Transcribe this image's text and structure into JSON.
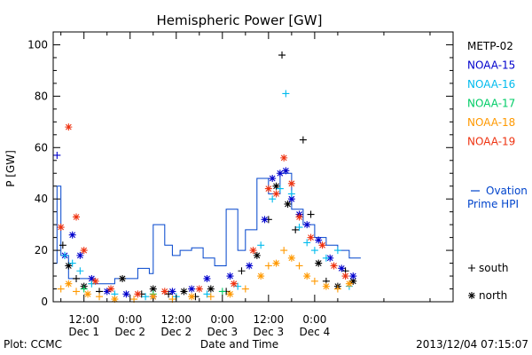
{
  "chart_data": {
    "type": "scatter",
    "title": "Hemispheric Power [GW]",
    "ylabel": "P [GW]",
    "xlabel": "Date and Time",
    "footer_left": "Plot: CCMC",
    "footer_right": "2013/12/04 07:15:07",
    "x_unit": "hours since 2013-11-30 00:00 UT",
    "xlim": [
      4,
      108
    ],
    "ylim": [
      0,
      105
    ],
    "grid": false,
    "legend_placement": "right",
    "yticks": [
      0,
      20,
      40,
      60,
      80,
      100
    ],
    "xticks": [
      {
        "x": 12,
        "top": "12:00",
        "bottom": "Dec 1"
      },
      {
        "x": 24,
        "top": "0:00",
        "bottom": "Dec 2"
      },
      {
        "x": 36,
        "top": "12:00",
        "bottom": "Dec 2"
      },
      {
        "x": 48,
        "top": "0:00",
        "bottom": "Dec 3"
      },
      {
        "x": 60,
        "top": "12:00",
        "bottom": "Dec 3"
      },
      {
        "x": 72,
        "top": "0:00",
        "bottom": "Dec 4"
      }
    ],
    "symbol_legend": [
      {
        "symbol": "+",
        "label": "south"
      },
      {
        "symbol": "*",
        "label": "north"
      }
    ],
    "series": [
      {
        "name": "METP-02",
        "color": "#000000",
        "points": [
          {
            "x": 6.5,
            "y": 22,
            "m": "+"
          },
          {
            "x": 8,
            "y": 14,
            "m": "*"
          },
          {
            "x": 10,
            "y": 9,
            "m": "+"
          },
          {
            "x": 12,
            "y": 6,
            "m": "*"
          },
          {
            "x": 16,
            "y": 4,
            "m": "+"
          },
          {
            "x": 22,
            "y": 9,
            "m": "*"
          },
          {
            "x": 27,
            "y": 3,
            "m": "+"
          },
          {
            "x": 30,
            "y": 5,
            "m": "*"
          },
          {
            "x": 34,
            "y": 3,
            "m": "+"
          },
          {
            "x": 38,
            "y": 4,
            "m": "*"
          },
          {
            "x": 41,
            "y": 2,
            "m": "+"
          },
          {
            "x": 45,
            "y": 5,
            "m": "*"
          },
          {
            "x": 49,
            "y": 4,
            "m": "+"
          },
          {
            "x": 53,
            "y": 12,
            "m": "+"
          },
          {
            "x": 57,
            "y": 18,
            "m": "*"
          },
          {
            "x": 60,
            "y": 32,
            "m": "+"
          },
          {
            "x": 62,
            "y": 45,
            "m": "*"
          },
          {
            "x": 63.5,
            "y": 96,
            "m": "+"
          },
          {
            "x": 65,
            "y": 38,
            "m": "*"
          },
          {
            "x": 67,
            "y": 28,
            "m": "+"
          },
          {
            "x": 69,
            "y": 63,
            "m": "+"
          },
          {
            "x": 71,
            "y": 34,
            "m": "+"
          },
          {
            "x": 73,
            "y": 15,
            "m": "*"
          },
          {
            "x": 75,
            "y": 8,
            "m": "+"
          },
          {
            "x": 78,
            "y": 6,
            "m": "*"
          },
          {
            "x": 80,
            "y": 12,
            "m": "+"
          },
          {
            "x": 82,
            "y": 8,
            "m": "*"
          }
        ]
      },
      {
        "name": "NOAA-15",
        "color": "#0000cc",
        "points": [
          {
            "x": 5,
            "y": 57,
            "m": "+"
          },
          {
            "x": 7,
            "y": 18,
            "m": "*"
          },
          {
            "x": 9,
            "y": 26,
            "m": "*"
          },
          {
            "x": 11,
            "y": 18,
            "m": "*"
          },
          {
            "x": 14,
            "y": 9,
            "m": "*"
          },
          {
            "x": 18,
            "y": 4,
            "m": "*"
          },
          {
            "x": 23,
            "y": 3,
            "m": "*"
          },
          {
            "x": 30,
            "y": 2,
            "m": "*"
          },
          {
            "x": 35,
            "y": 4,
            "m": "*"
          },
          {
            "x": 40,
            "y": 5,
            "m": "*"
          },
          {
            "x": 44,
            "y": 9,
            "m": "*"
          },
          {
            "x": 50,
            "y": 10,
            "m": "*"
          },
          {
            "x": 55,
            "y": 14,
            "m": "*"
          },
          {
            "x": 59,
            "y": 32,
            "m": "*"
          },
          {
            "x": 61,
            "y": 48,
            "m": "*"
          },
          {
            "x": 63,
            "y": 50,
            "m": "*"
          },
          {
            "x": 64.5,
            "y": 51,
            "m": "*"
          },
          {
            "x": 66,
            "y": 40,
            "m": "*"
          },
          {
            "x": 68,
            "y": 34,
            "m": "*"
          },
          {
            "x": 70,
            "y": 30,
            "m": "*"
          },
          {
            "x": 73,
            "y": 24,
            "m": "*"
          },
          {
            "x": 76,
            "y": 17,
            "m": "*"
          },
          {
            "x": 79,
            "y": 13,
            "m": "*"
          },
          {
            "x": 82,
            "y": 10,
            "m": "*"
          }
        ]
      },
      {
        "name": "NOAA-16",
        "color": "#00bbee",
        "points": [
          {
            "x": 7,
            "y": 18,
            "m": "+"
          },
          {
            "x": 9,
            "y": 15,
            "m": "+"
          },
          {
            "x": 11,
            "y": 12,
            "m": "+"
          },
          {
            "x": 14,
            "y": 7,
            "m": "+"
          },
          {
            "x": 20,
            "y": 3,
            "m": "+"
          },
          {
            "x": 28,
            "y": 2,
            "m": "+"
          },
          {
            "x": 36,
            "y": 2,
            "m": "+"
          },
          {
            "x": 44,
            "y": 3,
            "m": "+"
          },
          {
            "x": 52,
            "y": 6,
            "m": "+"
          },
          {
            "x": 58,
            "y": 22,
            "m": "+"
          },
          {
            "x": 61,
            "y": 40,
            "m": "+"
          },
          {
            "x": 63,
            "y": 44,
            "m": "+"
          },
          {
            "x": 64.5,
            "y": 81,
            "m": "+"
          },
          {
            "x": 66,
            "y": 42,
            "m": "+"
          },
          {
            "x": 68,
            "y": 29,
            "m": "+"
          },
          {
            "x": 70,
            "y": 23,
            "m": "+"
          },
          {
            "x": 72,
            "y": 20,
            "m": "+"
          },
          {
            "x": 75,
            "y": 17,
            "m": "+"
          },
          {
            "x": 78,
            "y": 20,
            "m": "+"
          },
          {
            "x": 81,
            "y": 6,
            "m": "+"
          }
        ]
      },
      {
        "name": "NOAA-17",
        "color": "#00cc66",
        "points": [
          {
            "x": 12,
            "y": 5,
            "m": "+"
          },
          {
            "x": 30,
            "y": 3,
            "m": "+"
          },
          {
            "x": 48,
            "y": 4,
            "m": "+"
          }
        ]
      },
      {
        "name": "NOAA-18",
        "color": "#ff9900",
        "points": [
          {
            "x": 6,
            "y": 5,
            "m": "+"
          },
          {
            "x": 8,
            "y": 7,
            "m": "*"
          },
          {
            "x": 10,
            "y": 4,
            "m": "+"
          },
          {
            "x": 13,
            "y": 3,
            "m": "*"
          },
          {
            "x": 16,
            "y": 2,
            "m": "+"
          },
          {
            "x": 20,
            "y": 1,
            "m": "*"
          },
          {
            "x": 25,
            "y": 1,
            "m": "+"
          },
          {
            "x": 30,
            "y": 2,
            "m": "*"
          },
          {
            "x": 35,
            "y": 1,
            "m": "+"
          },
          {
            "x": 40,
            "y": 2,
            "m": "*"
          },
          {
            "x": 45,
            "y": 2,
            "m": "+"
          },
          {
            "x": 50,
            "y": 3,
            "m": "*"
          },
          {
            "x": 54,
            "y": 5,
            "m": "+"
          },
          {
            "x": 58,
            "y": 10,
            "m": "*"
          },
          {
            "x": 60,
            "y": 14,
            "m": "+"
          },
          {
            "x": 62,
            "y": 15,
            "m": "*"
          },
          {
            "x": 64,
            "y": 20,
            "m": "+"
          },
          {
            "x": 66,
            "y": 17,
            "m": "*"
          },
          {
            "x": 68,
            "y": 14,
            "m": "+"
          },
          {
            "x": 70,
            "y": 10,
            "m": "*"
          },
          {
            "x": 72,
            "y": 8,
            "m": "+"
          },
          {
            "x": 75,
            "y": 6,
            "m": "*"
          },
          {
            "x": 78,
            "y": 5,
            "m": "+"
          },
          {
            "x": 81,
            "y": 7,
            "m": "*"
          }
        ]
      },
      {
        "name": "NOAA-19",
        "color": "#ee3311",
        "points": [
          {
            "x": 6,
            "y": 29,
            "m": "*"
          },
          {
            "x": 8,
            "y": 68,
            "m": "*"
          },
          {
            "x": 10,
            "y": 33,
            "m": "*"
          },
          {
            "x": 12,
            "y": 20,
            "m": "*"
          },
          {
            "x": 15,
            "y": 8,
            "m": "*"
          },
          {
            "x": 19,
            "y": 5,
            "m": "*"
          },
          {
            "x": 26,
            "y": 3,
            "m": "*"
          },
          {
            "x": 33,
            "y": 4,
            "m": "*"
          },
          {
            "x": 42,
            "y": 5,
            "m": "*"
          },
          {
            "x": 51,
            "y": 7,
            "m": "*"
          },
          {
            "x": 56,
            "y": 20,
            "m": "*"
          },
          {
            "x": 60,
            "y": 44,
            "m": "*"
          },
          {
            "x": 62,
            "y": 42,
            "m": "*"
          },
          {
            "x": 64,
            "y": 56,
            "m": "*"
          },
          {
            "x": 66,
            "y": 46,
            "m": "*"
          },
          {
            "x": 68,
            "y": 33,
            "m": "*"
          },
          {
            "x": 71,
            "y": 25,
            "m": "*"
          },
          {
            "x": 74,
            "y": 22,
            "m": "*"
          },
          {
            "x": 77,
            "y": 14,
            "m": "*"
          },
          {
            "x": 80,
            "y": 10,
            "m": "*"
          }
        ]
      }
    ],
    "hpi_series": {
      "name": "Ovation Prime HPI",
      "legend_label": "Ovation",
      "legend_label_2": "Prime HPI",
      "color": "#0044cc",
      "x": [
        4,
        5,
        5,
        6,
        6,
        8,
        8,
        14,
        14,
        20,
        20,
        26,
        26,
        29,
        29,
        30,
        30,
        33,
        33,
        35,
        35,
        37,
        37,
        40,
        40,
        43,
        43,
        46,
        46,
        49,
        49,
        52,
        52,
        54,
        54,
        57,
        57,
        60,
        60,
        63,
        63,
        66,
        66,
        69,
        69,
        72,
        72,
        75,
        75,
        78,
        78,
        81,
        81,
        84
      ],
      "y": [
        15,
        15,
        45,
        45,
        18,
        18,
        9,
        9,
        7,
        7,
        9,
        9,
        13,
        13,
        11,
        11,
        30,
        30,
        22,
        22,
        18,
        18,
        20,
        20,
        21,
        21,
        17,
        17,
        14,
        14,
        36,
        36,
        20,
        20,
        28,
        28,
        48,
        48,
        42,
        42,
        50,
        50,
        36,
        36,
        30,
        30,
        25,
        25,
        22,
        22,
        20,
        20,
        17,
        17
      ]
    }
  }
}
